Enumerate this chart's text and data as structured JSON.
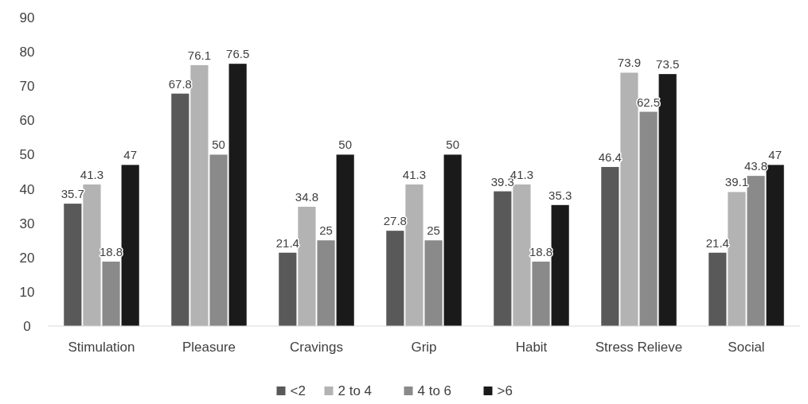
{
  "chart_data": {
    "type": "bar",
    "categories": [
      "Stimulation",
      "Pleasure",
      "Cravings",
      "Grip",
      "Habit",
      "Stress Relieve",
      "Social"
    ],
    "series": [
      {
        "name": "<2",
        "color": "#595959",
        "values": [
          35.7,
          67.8,
          21.4,
          27.8,
          39.3,
          46.4,
          21.4
        ]
      },
      {
        "name": "2 to 4",
        "color": "#b3b3b3",
        "values": [
          41.3,
          76.1,
          34.8,
          41.3,
          41.3,
          73.9,
          39.1
        ]
      },
      {
        "name": "4 to 6",
        "color": "#8a8a8a",
        "values": [
          18.8,
          50,
          25,
          25,
          18.8,
          62.5,
          43.8
        ]
      },
      {
        "name": ">6",
        "color": "#1a1a1a",
        "values": [
          47,
          76.5,
          50,
          50,
          35.3,
          73.5,
          47
        ]
      }
    ],
    "ylim": [
      0,
      90
    ],
    "yticks": [
      0,
      10,
      20,
      30,
      40,
      50,
      60,
      70,
      80,
      90
    ],
    "data_labels": true,
    "grid": false,
    "legend": "bottom"
  }
}
